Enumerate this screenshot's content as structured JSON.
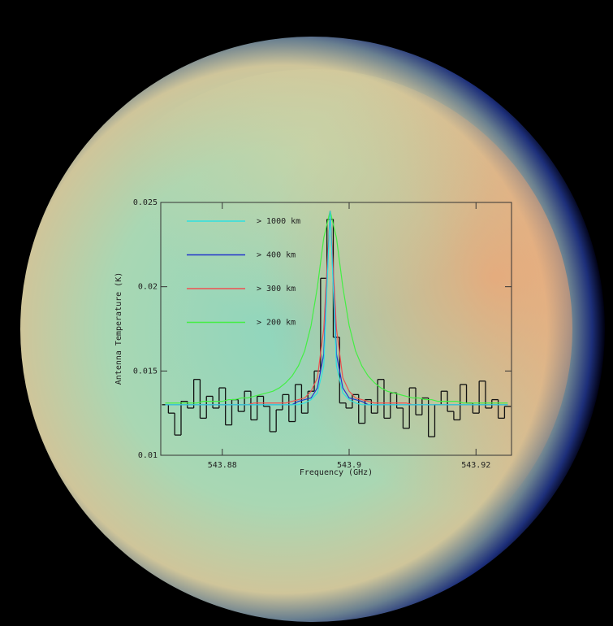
{
  "chart_data": {
    "type": "line",
    "xlabel": "Frequency (GHz)",
    "ylabel": "Antenna Temperature (K)",
    "xlim": [
      543.8703,
      543.9256
    ],
    "xticks": [
      543.88,
      543.9,
      543.92
    ],
    "ylim": [
      0.01,
      0.025
    ],
    "yticks": [
      0.01,
      0.015,
      0.02,
      0.025
    ],
    "legend": "upper left",
    "x": [
      543.871,
      543.872,
      543.873,
      543.874,
      543.875,
      543.876,
      543.877,
      543.878,
      543.879,
      543.88,
      543.881,
      543.882,
      543.883,
      543.884,
      543.885,
      543.886,
      543.887,
      543.888,
      543.889,
      543.89,
      543.891,
      543.892,
      543.893,
      543.894,
      543.895,
      543.896,
      543.897,
      543.898,
      543.899,
      543.9,
      543.901,
      543.902,
      543.903,
      543.904,
      543.905,
      543.906,
      543.907,
      543.908,
      543.909,
      543.91,
      543.911,
      543.912,
      543.913,
      543.914,
      543.915,
      543.916,
      543.917,
      543.918,
      543.919,
      543.92,
      543.921,
      543.922,
      543.923,
      543.924,
      543.925
    ],
    "observed": {
      "color": "#111111",
      "step": true,
      "values": [
        0.013,
        0.0125,
        0.0112,
        0.0132,
        0.0128,
        0.0145,
        0.0122,
        0.0135,
        0.0128,
        0.014,
        0.0118,
        0.0133,
        0.0126,
        0.0138,
        0.0121,
        0.0135,
        0.0129,
        0.0114,
        0.0127,
        0.0136,
        0.012,
        0.0142,
        0.0125,
        0.0138,
        0.015,
        0.0205,
        0.024,
        0.017,
        0.0131,
        0.0128,
        0.0136,
        0.0119,
        0.0133,
        0.0125,
        0.0145,
        0.0122,
        0.0137,
        0.0128,
        0.0116,
        0.014,
        0.0124,
        0.0134,
        0.0111,
        0.013,
        0.0138,
        0.0126,
        0.0121,
        0.0142,
        0.0131,
        0.0125,
        0.0144,
        0.0128,
        0.0133,
        0.0122,
        0.0129
      ]
    },
    "series": [
      {
        "name": "> 1000 km",
        "color": "#2fe0e0",
        "values": [
          0.013,
          0.013,
          0.013,
          0.013,
          0.013,
          0.013,
          0.013,
          0.013,
          0.013,
          0.013,
          0.013,
          0.013,
          0.013,
          0.013,
          0.013,
          0.013,
          0.013,
          0.013,
          0.013,
          0.013,
          0.013,
          0.013,
          0.0131,
          0.0133,
          0.0137,
          0.0153,
          0.0245,
          0.0153,
          0.0137,
          0.0133,
          0.0131,
          0.013,
          0.013,
          0.013,
          0.013,
          0.013,
          0.013,
          0.013,
          0.013,
          0.013,
          0.013,
          0.013,
          0.013,
          0.013,
          0.013,
          0.013,
          0.013,
          0.013,
          0.013,
          0.013,
          0.013,
          0.013,
          0.013,
          0.013,
          0.013
        ]
      },
      {
        "name": "> 400 km",
        "color": "#2233cc",
        "values": [
          0.013,
          0.013,
          0.013,
          0.013,
          0.013,
          0.013,
          0.013,
          0.013,
          0.013,
          0.013,
          0.013,
          0.013,
          0.013,
          0.013,
          0.013,
          0.013,
          0.013,
          0.013,
          0.013,
          0.013,
          0.013,
          0.0132,
          0.0133,
          0.0134,
          0.014,
          0.016,
          0.0245,
          0.016,
          0.014,
          0.0134,
          0.0133,
          0.0132,
          0.013,
          0.013,
          0.013,
          0.013,
          0.013,
          0.013,
          0.013,
          0.013,
          0.013,
          0.013,
          0.013,
          0.013,
          0.013,
          0.013,
          0.013,
          0.013,
          0.013,
          0.013,
          0.013,
          0.013,
          0.013,
          0.013,
          0.013
        ]
      },
      {
        "name": "> 300 km",
        "color": "#f05050",
        "values": [
          0.013,
          0.013,
          0.013,
          0.013,
          0.013,
          0.013,
          0.013,
          0.013,
          0.013,
          0.013,
          0.013,
          0.013,
          0.013,
          0.013,
          0.0131,
          0.0131,
          0.0131,
          0.0131,
          0.0131,
          0.0131,
          0.0132,
          0.0133,
          0.0134,
          0.0138,
          0.0146,
          0.0175,
          0.0245,
          0.0175,
          0.0146,
          0.0138,
          0.0134,
          0.0133,
          0.0132,
          0.0131,
          0.0131,
          0.0131,
          0.0131,
          0.0131,
          0.0131,
          0.013,
          0.013,
          0.013,
          0.013,
          0.013,
          0.013,
          0.013,
          0.013,
          0.013,
          0.013,
          0.013,
          0.013,
          0.013,
          0.013,
          0.013,
          0.013
        ]
      },
      {
        "name": "> 200 km",
        "color": "#44ee44",
        "values": [
          0.0131,
          0.0131,
          0.0131,
          0.0131,
          0.0131,
          0.0131,
          0.0132,
          0.0132,
          0.0132,
          0.0132,
          0.0133,
          0.0133,
          0.0134,
          0.0134,
          0.0135,
          0.0136,
          0.0137,
          0.0138,
          0.014,
          0.0143,
          0.0147,
          0.0153,
          0.0162,
          0.0177,
          0.02,
          0.0229,
          0.0245,
          0.0229,
          0.02,
          0.0177,
          0.0162,
          0.0153,
          0.0147,
          0.0143,
          0.014,
          0.0138,
          0.0137,
          0.0136,
          0.0135,
          0.0134,
          0.0134,
          0.0133,
          0.0133,
          0.0132,
          0.0132,
          0.0132,
          0.0132,
          0.0131,
          0.0131,
          0.0131,
          0.0131,
          0.0131,
          0.0131,
          0.0131,
          0.0131
        ]
      }
    ]
  }
}
